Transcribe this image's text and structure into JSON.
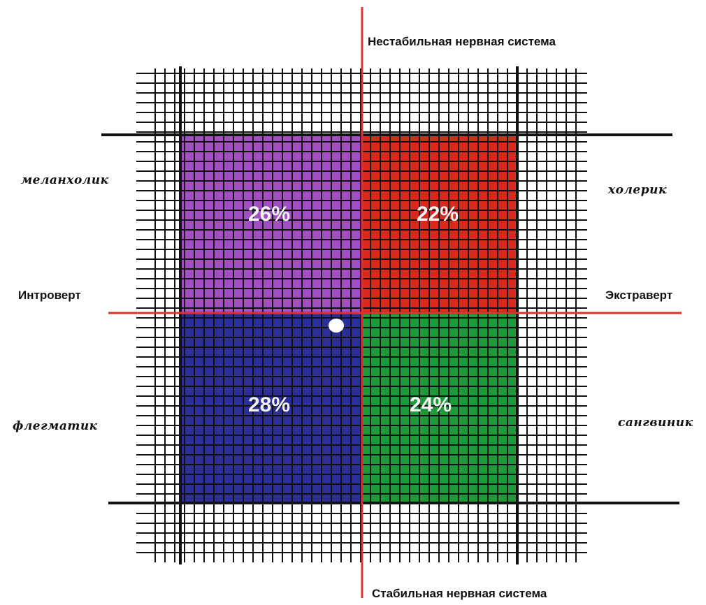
{
  "axes": {
    "top": "Нестабильная нервная система",
    "bottom": "Стабильная нервная система",
    "left": "Интроверт",
    "right": "Экстраверт"
  },
  "temperaments": {
    "melancholic": {
      "label": "меланхолик",
      "percent": "26%",
      "color": "#a24fc4"
    },
    "choleric": {
      "label": "холерик",
      "percent": "22%",
      "color": "#d9281c"
    },
    "phlegmatic": {
      "label": "флегматик",
      "percent": "28%",
      "color": "#2d2f98"
    },
    "sanguine": {
      "label": "сангвиник",
      "percent": "24%",
      "color": "#1f9a3a"
    }
  },
  "colors": {
    "axis_line": "#e0312f",
    "grid_line": "#111111"
  }
}
